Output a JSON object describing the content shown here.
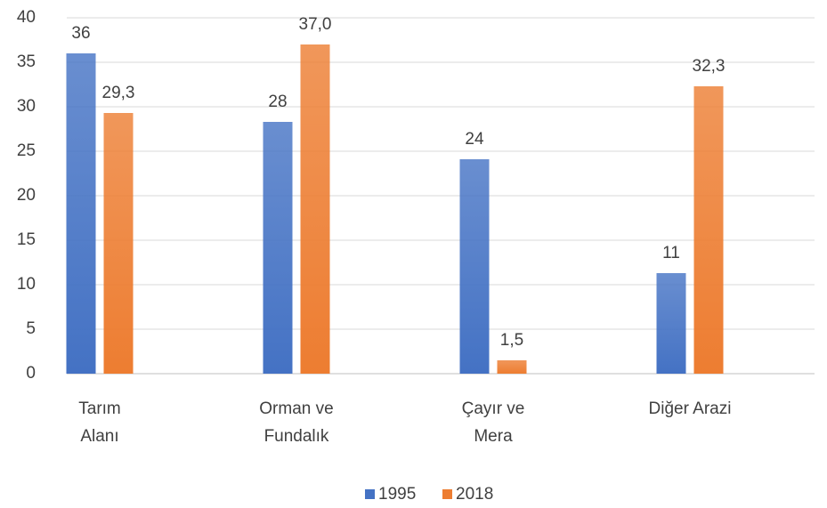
{
  "chart_data": {
    "type": "bar",
    "categories": [
      "Tarım\nAlanı",
      "Orman ve\nFundalık",
      "Çayır ve\nMera",
      "Diğer Arazi"
    ],
    "series": [
      {
        "name": "1995",
        "color": "#4472c4",
        "values": [
          36,
          28.3,
          24.1,
          11.3
        ],
        "value_labels": [
          "36",
          "28",
          "24",
          "11"
        ]
      },
      {
        "name": "2018",
        "color": "#ed7d31",
        "values": [
          29.3,
          37.0,
          1.5,
          32.3
        ],
        "value_labels": [
          "29,3",
          "37,0",
          "1,5",
          "32,3"
        ]
      }
    ],
    "ylim": [
      0,
      40
    ],
    "yticks": [
      0,
      5,
      10,
      15,
      20,
      25,
      30,
      35,
      40
    ],
    "grid": true,
    "legend": "bottom"
  }
}
